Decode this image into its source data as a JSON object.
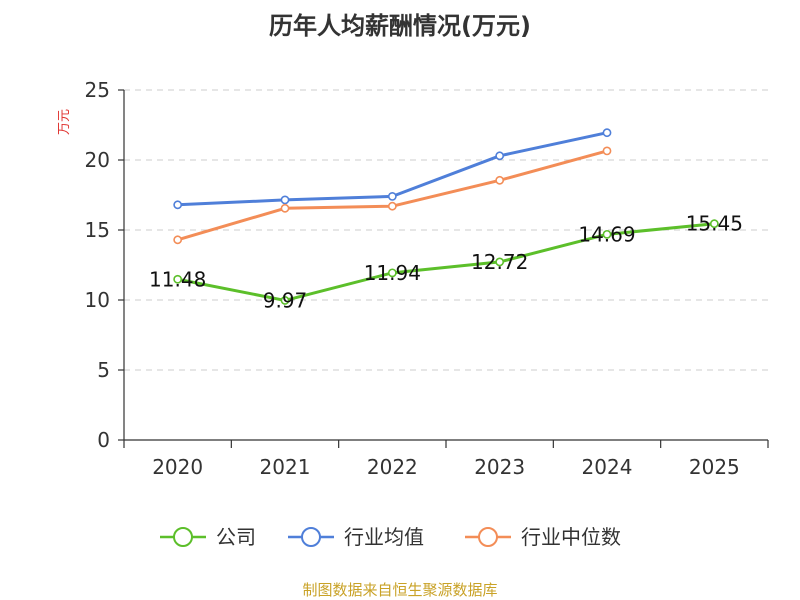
{
  "chart_data": {
    "type": "line",
    "title": "历年人均薪酬情况(万元)",
    "ylabel": "万元",
    "xlabel": "",
    "categories": [
      "2020",
      "2021",
      "2022",
      "2023",
      "2024",
      "2025"
    ],
    "ylim": [
      0,
      25
    ],
    "yticks": [
      0,
      5,
      10,
      15,
      20,
      25
    ],
    "grid": true,
    "legend_position": "bottom",
    "series": [
      {
        "name": "公司",
        "color": "#5cbf2a",
        "values": [
          11.48,
          9.97,
          11.94,
          12.72,
          14.69,
          15.45
        ],
        "labels": [
          "11.48",
          "9.97",
          "11.94",
          "12.72",
          "14.69",
          "15.45"
        ],
        "show_labels": true
      },
      {
        "name": "行业均值",
        "color": "#4f7fd9",
        "values": [
          16.8,
          17.15,
          17.4,
          20.3,
          21.95,
          null
        ],
        "show_labels": false
      },
      {
        "name": "行业中位数",
        "color": "#f38d57",
        "values": [
          14.3,
          16.55,
          16.7,
          18.55,
          20.65,
          null
        ],
        "show_labels": false
      }
    ]
  },
  "source": "制图数据来自恒生聚源数据库"
}
